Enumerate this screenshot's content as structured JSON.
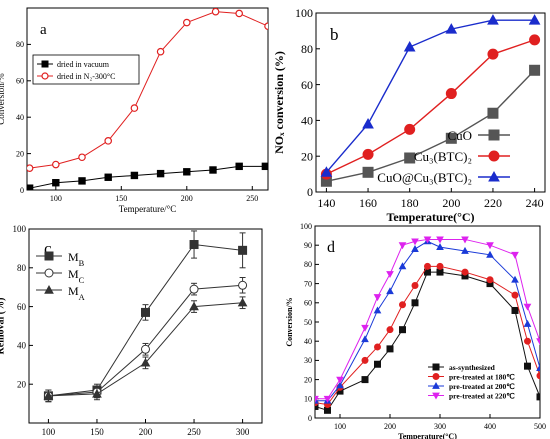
{
  "chart_data": [
    {
      "type": "line",
      "panel_label": "a",
      "xlabel": "Temperature/°C",
      "ylabel": "Conversion/%",
      "xlim": [
        78,
        262
      ],
      "ylim": [
        0,
        100
      ],
      "xticks": [
        100,
        150,
        200,
        250
      ],
      "yticks": [
        0,
        20,
        40,
        60,
        80
      ],
      "legend_position": "top-left",
      "series": [
        {
          "name": "dried in vacuum",
          "color": "#000000",
          "marker": "square",
          "x": [
            80,
            100,
            120,
            140,
            160,
            180,
            200,
            220,
            240,
            260
          ],
          "y": [
            1,
            4,
            5,
            7,
            8,
            9,
            10,
            11,
            13,
            13
          ]
        },
        {
          "name": "dried in N₂-300°C",
          "color": "#e02020",
          "marker": "circle",
          "x": [
            80,
            100,
            120,
            140,
            160,
            180,
            200,
            222,
            240,
            262
          ],
          "y": [
            12,
            14,
            18,
            27,
            45,
            76,
            92,
            98,
            97,
            90
          ]
        }
      ]
    },
    {
      "type": "line",
      "panel_label": "b",
      "xlabel": "Temperature(°C)",
      "ylabel": "NOₓ conversion (%)",
      "xlim": [
        135,
        245
      ],
      "ylim": [
        0,
        100
      ],
      "xticks": [
        140,
        160,
        180,
        200,
        220,
        240
      ],
      "yticks": [
        0,
        20,
        40,
        60,
        80,
        100
      ],
      "legend_position": "bottom-right",
      "series": [
        {
          "name": "CuO",
          "color": "#555555",
          "marker": "square",
          "x": [
            140,
            160,
            180,
            200,
            220,
            240
          ],
          "y": [
            6,
            11,
            19,
            30,
            44,
            68
          ]
        },
        {
          "name": "Cu₃(BTC)₂",
          "color": "#e02020",
          "marker": "circle",
          "x": [
            140,
            160,
            180,
            200,
            220,
            240
          ],
          "y": [
            10,
            21,
            35,
            55,
            77,
            85
          ]
        },
        {
          "name": "CuO@Cu₃(BTC)₂",
          "color": "#1a2ccc",
          "marker": "triangle",
          "x": [
            140,
            160,
            180,
            200,
            220,
            240
          ],
          "y": [
            11,
            38,
            81,
            91,
            96,
            96
          ]
        }
      ]
    },
    {
      "type": "line",
      "panel_label": "c",
      "xlabel": "Temperature(°C)",
      "ylabel": "Removal (%)",
      "xlim": [
        80,
        320
      ],
      "ylim": [
        0,
        100
      ],
      "xticks": [
        100,
        150,
        200,
        250,
        300
      ],
      "yticks": [
        20,
        40,
        60,
        80,
        100
      ],
      "legend_position": "top-left",
      "series": [
        {
          "name": "M_B",
          "color": "#333333",
          "marker": "square-filled",
          "x": [
            100,
            150,
            200,
            250,
            300
          ],
          "y": [
            14,
            17,
            57,
            92,
            89
          ],
          "err": [
            3,
            3,
            4,
            7,
            9
          ]
        },
        {
          "name": "M_C",
          "color": "#333333",
          "marker": "circle-open",
          "x": [
            100,
            150,
            200,
            250,
            300
          ],
          "y": [
            14,
            16,
            38,
            69,
            71
          ],
          "err": [
            3,
            3,
            3,
            3,
            4
          ]
        },
        {
          "name": "M_A",
          "color": "#333333",
          "marker": "triangle-filled",
          "x": [
            100,
            150,
            200,
            250,
            300
          ],
          "y": [
            14,
            15,
            31,
            60,
            62
          ],
          "err": [
            3,
            3,
            3,
            3,
            3
          ]
        }
      ]
    },
    {
      "type": "line",
      "panel_label": "d",
      "xlabel": "Temperature(°C)",
      "ylabel": "Conversion/%",
      "xlim": [
        50,
        500
      ],
      "ylim": [
        0,
        100
      ],
      "xticks": [
        100,
        200,
        300,
        400,
        500
      ],
      "yticks": [
        0,
        10,
        20,
        30,
        40,
        50,
        60,
        70,
        80,
        90,
        100
      ],
      "legend_position": "bottom-right",
      "series": [
        {
          "name": "as-synthesized",
          "color": "#111111",
          "marker": "square",
          "x": [
            50,
            75,
            100,
            150,
            175,
            200,
            225,
            250,
            275,
            300,
            350,
            400,
            450,
            475,
            500
          ],
          "y": [
            6,
            4,
            14,
            20,
            28,
            36,
            46,
            60,
            76,
            76,
            74,
            70,
            56,
            27,
            11
          ]
        },
        {
          "name": "pre-treated at 180℃",
          "color": "#e02020",
          "marker": "circle",
          "x": [
            50,
            75,
            100,
            150,
            175,
            200,
            225,
            250,
            275,
            300,
            350,
            400,
            450,
            475,
            500
          ],
          "y": [
            8,
            7,
            16,
            30,
            37,
            46,
            59,
            69,
            79,
            79,
            76,
            72,
            64,
            40,
            22
          ]
        },
        {
          "name": "pre-treated at 200℃",
          "color": "#1a3ad8",
          "marker": "triangle",
          "x": [
            50,
            75,
            100,
            150,
            175,
            200,
            225,
            250,
            275,
            300,
            350,
            400,
            450,
            475,
            500
          ],
          "y": [
            9,
            9,
            17,
            41,
            56,
            66,
            79,
            88,
            92,
            89,
            87,
            85,
            72,
            49,
            26
          ]
        },
        {
          "name": "pre-treated at 220℃",
          "color": "#dd22ee",
          "marker": "triangle-down",
          "x": [
            50,
            75,
            100,
            150,
            175,
            200,
            225,
            250,
            275,
            300,
            350,
            400,
            450,
            475,
            500
          ],
          "y": [
            10,
            10,
            20,
            47,
            63,
            75,
            90,
            92,
            93,
            93,
            93,
            90,
            85,
            58,
            40
          ]
        }
      ]
    }
  ]
}
